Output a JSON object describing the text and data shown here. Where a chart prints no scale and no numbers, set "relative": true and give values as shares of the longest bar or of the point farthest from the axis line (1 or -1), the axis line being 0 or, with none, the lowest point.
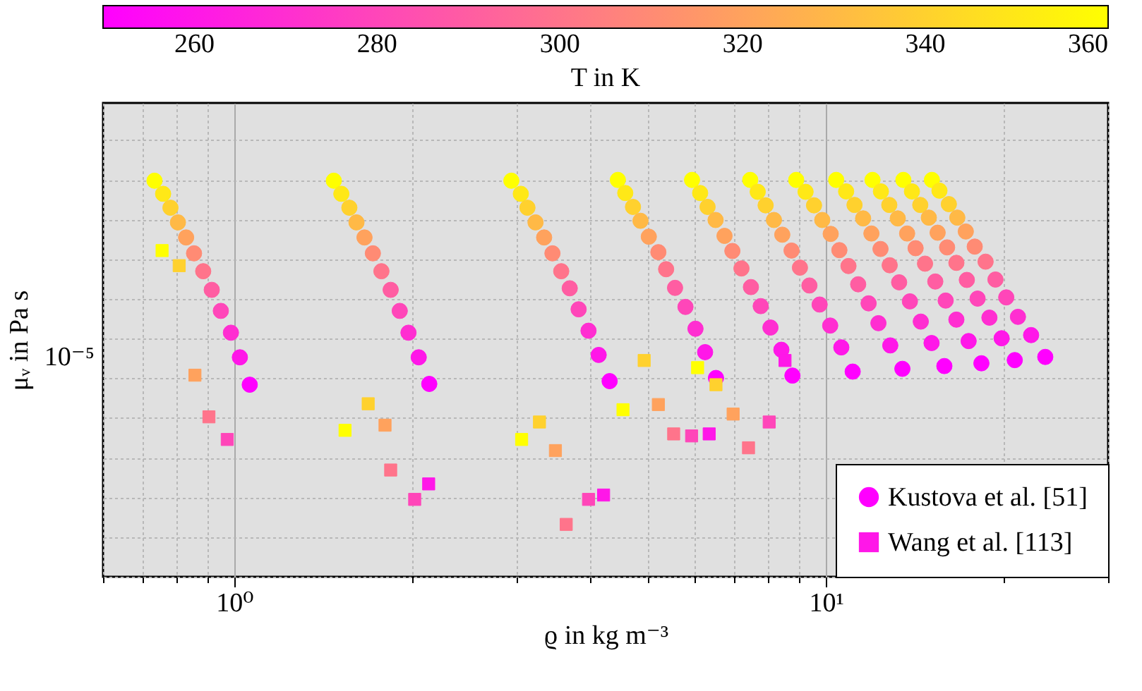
{
  "chart_data": {
    "type": "scatter",
    "xlabel": "ϱ in kg m⁻³",
    "ylabel": "μᵥ in Pa s",
    "clabel": "T in K",
    "log": "x",
    "grid": true,
    "legend": "bottom right",
    "relative": true,
    "annotations": [
      "10⁻⁵"
    ],
    "xlim": [
      0.6,
      30
    ],
    "xticks": [
      {
        "value": 0.6,
        "label": null
      },
      {
        "value": 0.7,
        "label": null
      },
      {
        "value": 0.8,
        "label": null
      },
      {
        "value": 0.9,
        "label": null
      },
      {
        "value": 1,
        "label": "10⁰"
      },
      {
        "value": 2,
        "label": null
      },
      {
        "value": 3,
        "label": null
      },
      {
        "value": 4,
        "label": null
      },
      {
        "value": 5,
        "label": null
      },
      {
        "value": 6,
        "label": null
      },
      {
        "value": 7,
        "label": null
      },
      {
        "value": 8,
        "label": null
      },
      {
        "value": 9,
        "label": null
      },
      {
        "value": 10,
        "label": "10¹"
      },
      {
        "value": 20,
        "label": null
      },
      {
        "value": 30,
        "label": null
      }
    ],
    "clim": [
      250,
      360
    ],
    "cticks": [
      260,
      280,
      300,
      320,
      340,
      360
    ],
    "series": [
      {
        "name": "Kustova et al. [51]",
        "marker": "circle",
        "x": [
          0.733,
          0.758,
          0.78,
          0.803,
          0.829,
          0.855,
          0.886,
          0.916,
          0.949,
          0.987,
          1.022,
          1.062,
          1.473,
          1.517,
          1.565,
          1.609,
          1.66,
          1.715,
          1.773,
          1.838,
          1.904,
          1.97,
          2.05,
          2.136,
          2.94,
          3.05,
          3.13,
          3.23,
          3.34,
          3.45,
          3.57,
          3.69,
          3.82,
          3.97,
          4.13,
          4.31,
          4.45,
          4.58,
          4.72,
          4.86,
          5.02,
          5.21,
          5.37,
          5.56,
          5.79,
          6.02,
          6.25,
          6.52,
          5.94,
          6.13,
          6.31,
          6.51,
          6.74,
          6.95,
          7.2,
          7.47,
          7.76,
          8.06,
          8.41,
          8.78,
          7.45,
          7.67,
          7.91,
          8.17,
          8.44,
          8.75,
          9.04,
          9.38,
          9.76,
          10.17,
          10.62,
          11.1,
          8.91,
          9.24,
          9.55,
          9.86,
          10.19,
          10.54,
          10.92,
          11.34,
          11.81,
          12.27,
          12.85,
          13.47,
          10.41,
          10.82,
          11.18,
          11.56,
          11.94,
          12.37,
          12.82,
          13.3,
          13.87,
          14.47,
          15.09,
          15.86,
          11.99,
          12.39,
          12.8,
          13.23,
          13.72,
          14.18,
          14.71,
          15.31,
          15.94,
          16.62,
          17.43,
          18.32,
          13.52,
          13.98,
          14.44,
          14.93,
          15.45,
          16.03,
          16.62,
          17.31,
          18.05,
          18.9,
          19.82,
          20.86,
          15.11,
          15.56,
          16.14,
          16.68,
          17.24,
          17.85,
          18.62,
          19.35,
          20.18,
          21.12,
          22.23,
          23.49
        ],
        "values": [
          0.998,
          0.965,
          0.93,
          0.893,
          0.855,
          0.815,
          0.77,
          0.723,
          0.67,
          0.615,
          0.553,
          0.484,
          0.998,
          0.965,
          0.93,
          0.893,
          0.855,
          0.815,
          0.77,
          0.723,
          0.67,
          0.615,
          0.553,
          0.486,
          0.998,
          0.965,
          0.93,
          0.893,
          0.855,
          0.815,
          0.77,
          0.727,
          0.674,
          0.62,
          0.559,
          0.493,
          1,
          0.967,
          0.932,
          0.897,
          0.857,
          0.818,
          0.775,
          0.728,
          0.68,
          0.625,
          0.566,
          0.501,
          1,
          0.967,
          0.932,
          0.899,
          0.859,
          0.821,
          0.777,
          0.73,
          0.682,
          0.628,
          0.572,
          0.507,
          1,
          0.97,
          0.936,
          0.899,
          0.862,
          0.822,
          0.779,
          0.734,
          0.686,
          0.633,
          0.578,
          0.517,
          1,
          0.97,
          0.936,
          0.899,
          0.864,
          0.823,
          0.783,
          0.737,
          0.689,
          0.639,
          0.583,
          0.524,
          1,
          0.971,
          0.937,
          0.903,
          0.865,
          0.826,
          0.785,
          0.742,
          0.694,
          0.643,
          0.589,
          0.531,
          1,
          0.971,
          0.937,
          0.903,
          0.865,
          0.828,
          0.789,
          0.744,
          0.696,
          0.648,
          0.594,
          0.538,
          1,
          0.971,
          0.937,
          0.905,
          0.867,
          0.83,
          0.791,
          0.748,
          0.701,
          0.653,
          0.601,
          0.546,
          1,
          0.973,
          0.939,
          0.905,
          0.87,
          0.832,
          0.794,
          0.749,
          0.704,
          0.655,
          0.609,
          0.554
        ],
        "cvalues": [
          360,
          350,
          340,
          330,
          320,
          310,
          300,
          290,
          280,
          270,
          260,
          250,
          360,
          350,
          340,
          330,
          320,
          310,
          300,
          290,
          280,
          270,
          260,
          250,
          360,
          350,
          340,
          330,
          320,
          310,
          300,
          290,
          280,
          270,
          260,
          250,
          360,
          350,
          340,
          330,
          320,
          310,
          300,
          290,
          280,
          270,
          260,
          250,
          360,
          350,
          340,
          330,
          320,
          310,
          300,
          290,
          280,
          270,
          260,
          250,
          360,
          350,
          340,
          330,
          320,
          310,
          300,
          290,
          280,
          270,
          260,
          250,
          360,
          350,
          340,
          330,
          320,
          310,
          300,
          290,
          280,
          270,
          260,
          250,
          360,
          350,
          340,
          330,
          320,
          310,
          300,
          290,
          280,
          270,
          260,
          250,
          360,
          350,
          340,
          330,
          320,
          310,
          300,
          290,
          280,
          270,
          260,
          250,
          360,
          350,
          340,
          330,
          320,
          310,
          300,
          290,
          280,
          270,
          260,
          250,
          360,
          350,
          340,
          330,
          320,
          310,
          300,
          290,
          280,
          270,
          260,
          250
        ],
        "colors": [
          "#ffff00",
          "#ffe817",
          "#ffd12e",
          "#ffb946",
          "#ffa25d",
          "#ff8b74",
          "#ff748b",
          "#ff5da2",
          "#ff46b9",
          "#ff2ed1",
          "#ff17e8",
          "#ff00ff",
          "#ffff00",
          "#ffe817",
          "#ffd12e",
          "#ffb946",
          "#ffa25d",
          "#ff8b74",
          "#ff748b",
          "#ff5da2",
          "#ff46b9",
          "#ff2ed1",
          "#ff17e8",
          "#ff00ff",
          "#ffff00",
          "#ffe817",
          "#ffd12e",
          "#ffb946",
          "#ffa25d",
          "#ff8b74",
          "#ff748b",
          "#ff5da2",
          "#ff46b9",
          "#ff2ed1",
          "#ff17e8",
          "#ff00ff",
          "#ffff00",
          "#ffe817",
          "#ffd12e",
          "#ffb946",
          "#ffa25d",
          "#ff8b74",
          "#ff748b",
          "#ff5da2",
          "#ff46b9",
          "#ff2ed1",
          "#ff17e8",
          "#ff00ff",
          "#ffff00",
          "#ffe817",
          "#ffd12e",
          "#ffb946",
          "#ffa25d",
          "#ff8b74",
          "#ff748b",
          "#ff5da2",
          "#ff46b9",
          "#ff2ed1",
          "#ff17e8",
          "#ff00ff",
          "#ffff00",
          "#ffe817",
          "#ffd12e",
          "#ffb946",
          "#ffa25d",
          "#ff8b74",
          "#ff748b",
          "#ff5da2",
          "#ff46b9",
          "#ff2ed1",
          "#ff17e8",
          "#ff00ff",
          "#ffff00",
          "#ffe817",
          "#ffd12e",
          "#ffb946",
          "#ffa25d",
          "#ff8b74",
          "#ff748b",
          "#ff5da2",
          "#ff46b9",
          "#ff2ed1",
          "#ff17e8",
          "#ff00ff",
          "#ffff00",
          "#ffe817",
          "#ffd12e",
          "#ffb946",
          "#ffa25d",
          "#ff8b74",
          "#ff748b",
          "#ff5da2",
          "#ff46b9",
          "#ff2ed1",
          "#ff17e8",
          "#ff00ff",
          "#ffff00",
          "#ffe817",
          "#ffd12e",
          "#ffb946",
          "#ffa25d",
          "#ff8b74",
          "#ff748b",
          "#ff5da2",
          "#ff46b9",
          "#ff2ed1",
          "#ff17e8",
          "#ff00ff",
          "#ffff00",
          "#ffe817",
          "#ffd12e",
          "#ffb946",
          "#ffa25d",
          "#ff8b74",
          "#ff748b",
          "#ff5da2",
          "#ff46b9",
          "#ff2ed1",
          "#ff17e8",
          "#ff00ff",
          "#ffff00",
          "#ffe817",
          "#ffd12e",
          "#ffb946",
          "#ffa25d",
          "#ff8b74",
          "#ff748b",
          "#ff5da2",
          "#ff46b9",
          "#ff2ed1",
          "#ff17e8",
          "#ff00ff"
        ]
      },
      {
        "name": "Wang et al. [113]",
        "marker": "square",
        "x": [
          0.755,
          0.807,
          0.858,
          0.906,
          0.973,
          1.539,
          1.684,
          1.798,
          1.838,
          2.018,
          2.131,
          3.06,
          3.28,
          3.49,
          3.64,
          3.97,
          4.21,
          4.54,
          4.93,
          5.21,
          5.53,
          5.93,
          6.35,
          6.07,
          6.52,
          6.97,
          7.4,
          8.02,
          8.53
        ],
        "values": [
          0.822,
          0.784,
          0.508,
          0.403,
          0.346,
          0.369,
          0.436,
          0.382,
          0.269,
          0.195,
          0.234,
          0.346,
          0.39,
          0.318,
          0.132,
          0.195,
          0.206,
          0.421,
          0.545,
          0.434,
          0.36,
          0.355,
          0.36,
          0.527,
          0.484,
          0.41,
          0.325,
          0.39,
          0.545
        ],
        "cvalues": [
          360,
          340,
          320,
          300,
          280,
          360,
          340,
          320,
          300,
          280,
          260,
          360,
          340,
          320,
          300,
          280,
          260,
          360,
          340,
          320,
          300,
          280,
          260,
          360,
          340,
          320,
          300,
          280,
          260
        ],
        "colors": [
          "#ffff00",
          "#ffd12e",
          "#ffa25d",
          "#ff748b",
          "#ff46b9",
          "#ffff00",
          "#ffd12e",
          "#ffa25d",
          "#ff748b",
          "#ff46b9",
          "#ff17e8",
          "#ffff00",
          "#ffd12e",
          "#ffa25d",
          "#ff748b",
          "#ff46b9",
          "#ff17e8",
          "#ffff00",
          "#ffd12e",
          "#ffa25d",
          "#ff748b",
          "#ff46b9",
          "#ff17e8",
          "#ffff00",
          "#ffd12e",
          "#ffa25d",
          "#ff748b",
          "#ff46b9",
          "#ff17e8"
        ]
      }
    ]
  }
}
